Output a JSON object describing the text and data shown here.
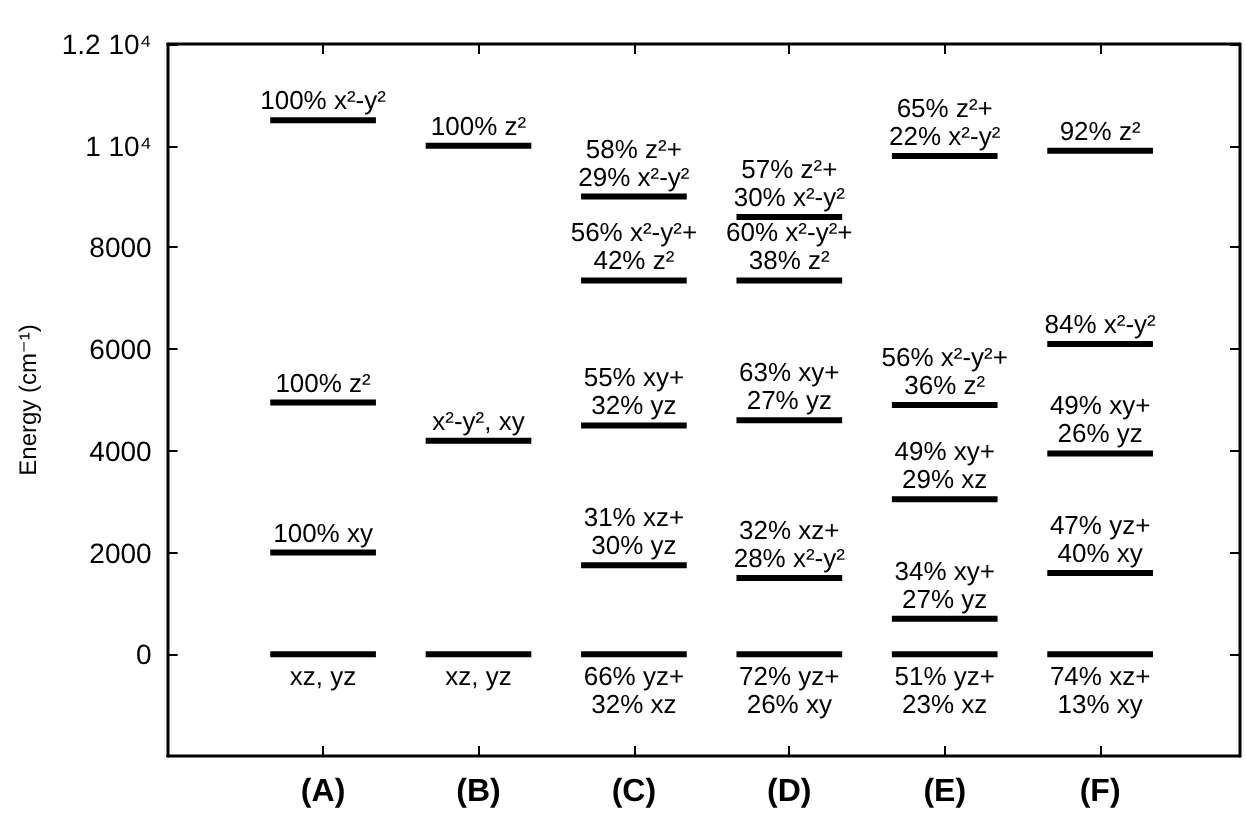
{
  "chart_data": {
    "type": "bar",
    "ylabel": "Energy (cm⁻¹)",
    "categories": [
      "(A)",
      "(B)",
      "(C)",
      "(D)",
      "(E)",
      "(F)"
    ],
    "ylim": [
      -2000,
      12000
    ],
    "yticks": [
      0,
      2000,
      4000,
      6000,
      8000,
      {
        "value": 10000,
        "label": "1 10⁴"
      },
      {
        "value": 12000,
        "label": "1.2 10⁴"
      }
    ],
    "series": [
      {
        "color": "#000000",
        "base": [
          0,
          0,
          0,
          0,
          0,
          0
        ],
        "values": [
          0,
          0,
          0,
          0,
          0,
          0
        ]
      },
      {
        "color": "#000000",
        "base": [
          2000,
          4200,
          1750,
          1500,
          700,
          1600
        ],
        "values": [
          0,
          0,
          0,
          0,
          0,
          0
        ]
      },
      {
        "color": "#000000",
        "base": [
          4950,
          10000,
          4500,
          4600,
          3050,
          3950
        ],
        "values": [
          0,
          0,
          0,
          0,
          0,
          0
        ]
      },
      {
        "color": "#000000",
        "base": [
          10500,
          null,
          7350,
          7350,
          4900,
          6100
        ],
        "values": [
          0,
          null,
          0,
          0,
          0,
          0
        ]
      },
      {
        "color": "#000000",
        "base": [
          null,
          null,
          9000,
          8600,
          9800,
          9900
        ],
        "values": [
          null,
          null,
          0,
          0,
          0,
          0
        ]
      }
    ],
    "annotations": [
      {
        "text": "xz, yz",
        "x": "(A)",
        "y": 0
      },
      {
        "text": "100% xy",
        "x": "(A)",
        "y": 2000
      },
      {
        "text": "100% z²",
        "x": "(A)",
        "y": 4950
      },
      {
        "text": "100% x²-y²",
        "x": "(A)",
        "y": 10500
      },
      {
        "text": "xz, yz",
        "x": "(B)",
        "y": 0
      },
      {
        "text": "x²-y², xy",
        "x": "(B)",
        "y": 4200
      },
      {
        "text": "100% z²",
        "x": "(B)",
        "y": 10000
      },
      {
        "text": "66% yz+\n32% xz",
        "x": "(C)",
        "y": 0
      },
      {
        "text": "31% xz+\n30% yz",
        "x": "(C)",
        "y": 1750
      },
      {
        "text": "55% xy+\n32% yz",
        "x": "(C)",
        "y": 4500
      },
      {
        "text": "56% x²-y²+\n42% z²",
        "x": "(C)",
        "y": 7350
      },
      {
        "text": "58% z²+\n29% x²-y²",
        "x": "(C)",
        "y": 9000
      },
      {
        "text": "72% yz+\n26% xy",
        "x": "(D)",
        "y": 0
      },
      {
        "text": "32% xz+\n28% x²-y²",
        "x": "(D)",
        "y": 1500
      },
      {
        "text": "63% xy+\n27% yz",
        "x": "(D)",
        "y": 4600
      },
      {
        "text": "60% x²-y²+\n38% z²",
        "x": "(D)",
        "y": 7350
      },
      {
        "text": "57% z²+\n30% x²-y²",
        "x": "(D)",
        "y": 8600
      },
      {
        "text": "51% yz+\n23% xz",
        "x": "(E)",
        "y": 0
      },
      {
        "text": "34% xy+\n27% yz",
        "x": "(E)",
        "y": 700
      },
      {
        "text": "49% xy+\n29% xz",
        "x": "(E)",
        "y": 3050
      },
      {
        "text": "56% x²-y²+\n36% z²",
        "x": "(E)",
        "y": 4900
      },
      {
        "text": "65% z²+\n22% x²-y²",
        "x": "(E)",
        "y": 9800
      },
      {
        "text": "74% xz+\n13% xy",
        "x": "(F)",
        "y": 0
      },
      {
        "text": "47% yz+\n40% xy",
        "x": "(F)",
        "y": 1600
      },
      {
        "text": "49% xy+\n26% yz",
        "x": "(F)",
        "y": 3950
      },
      {
        "text": "84% x²-y²",
        "x": "(F)",
        "y": 6100
      },
      {
        "text": "92% z²",
        "x": "(F)",
        "y": 9900
      }
    ]
  }
}
